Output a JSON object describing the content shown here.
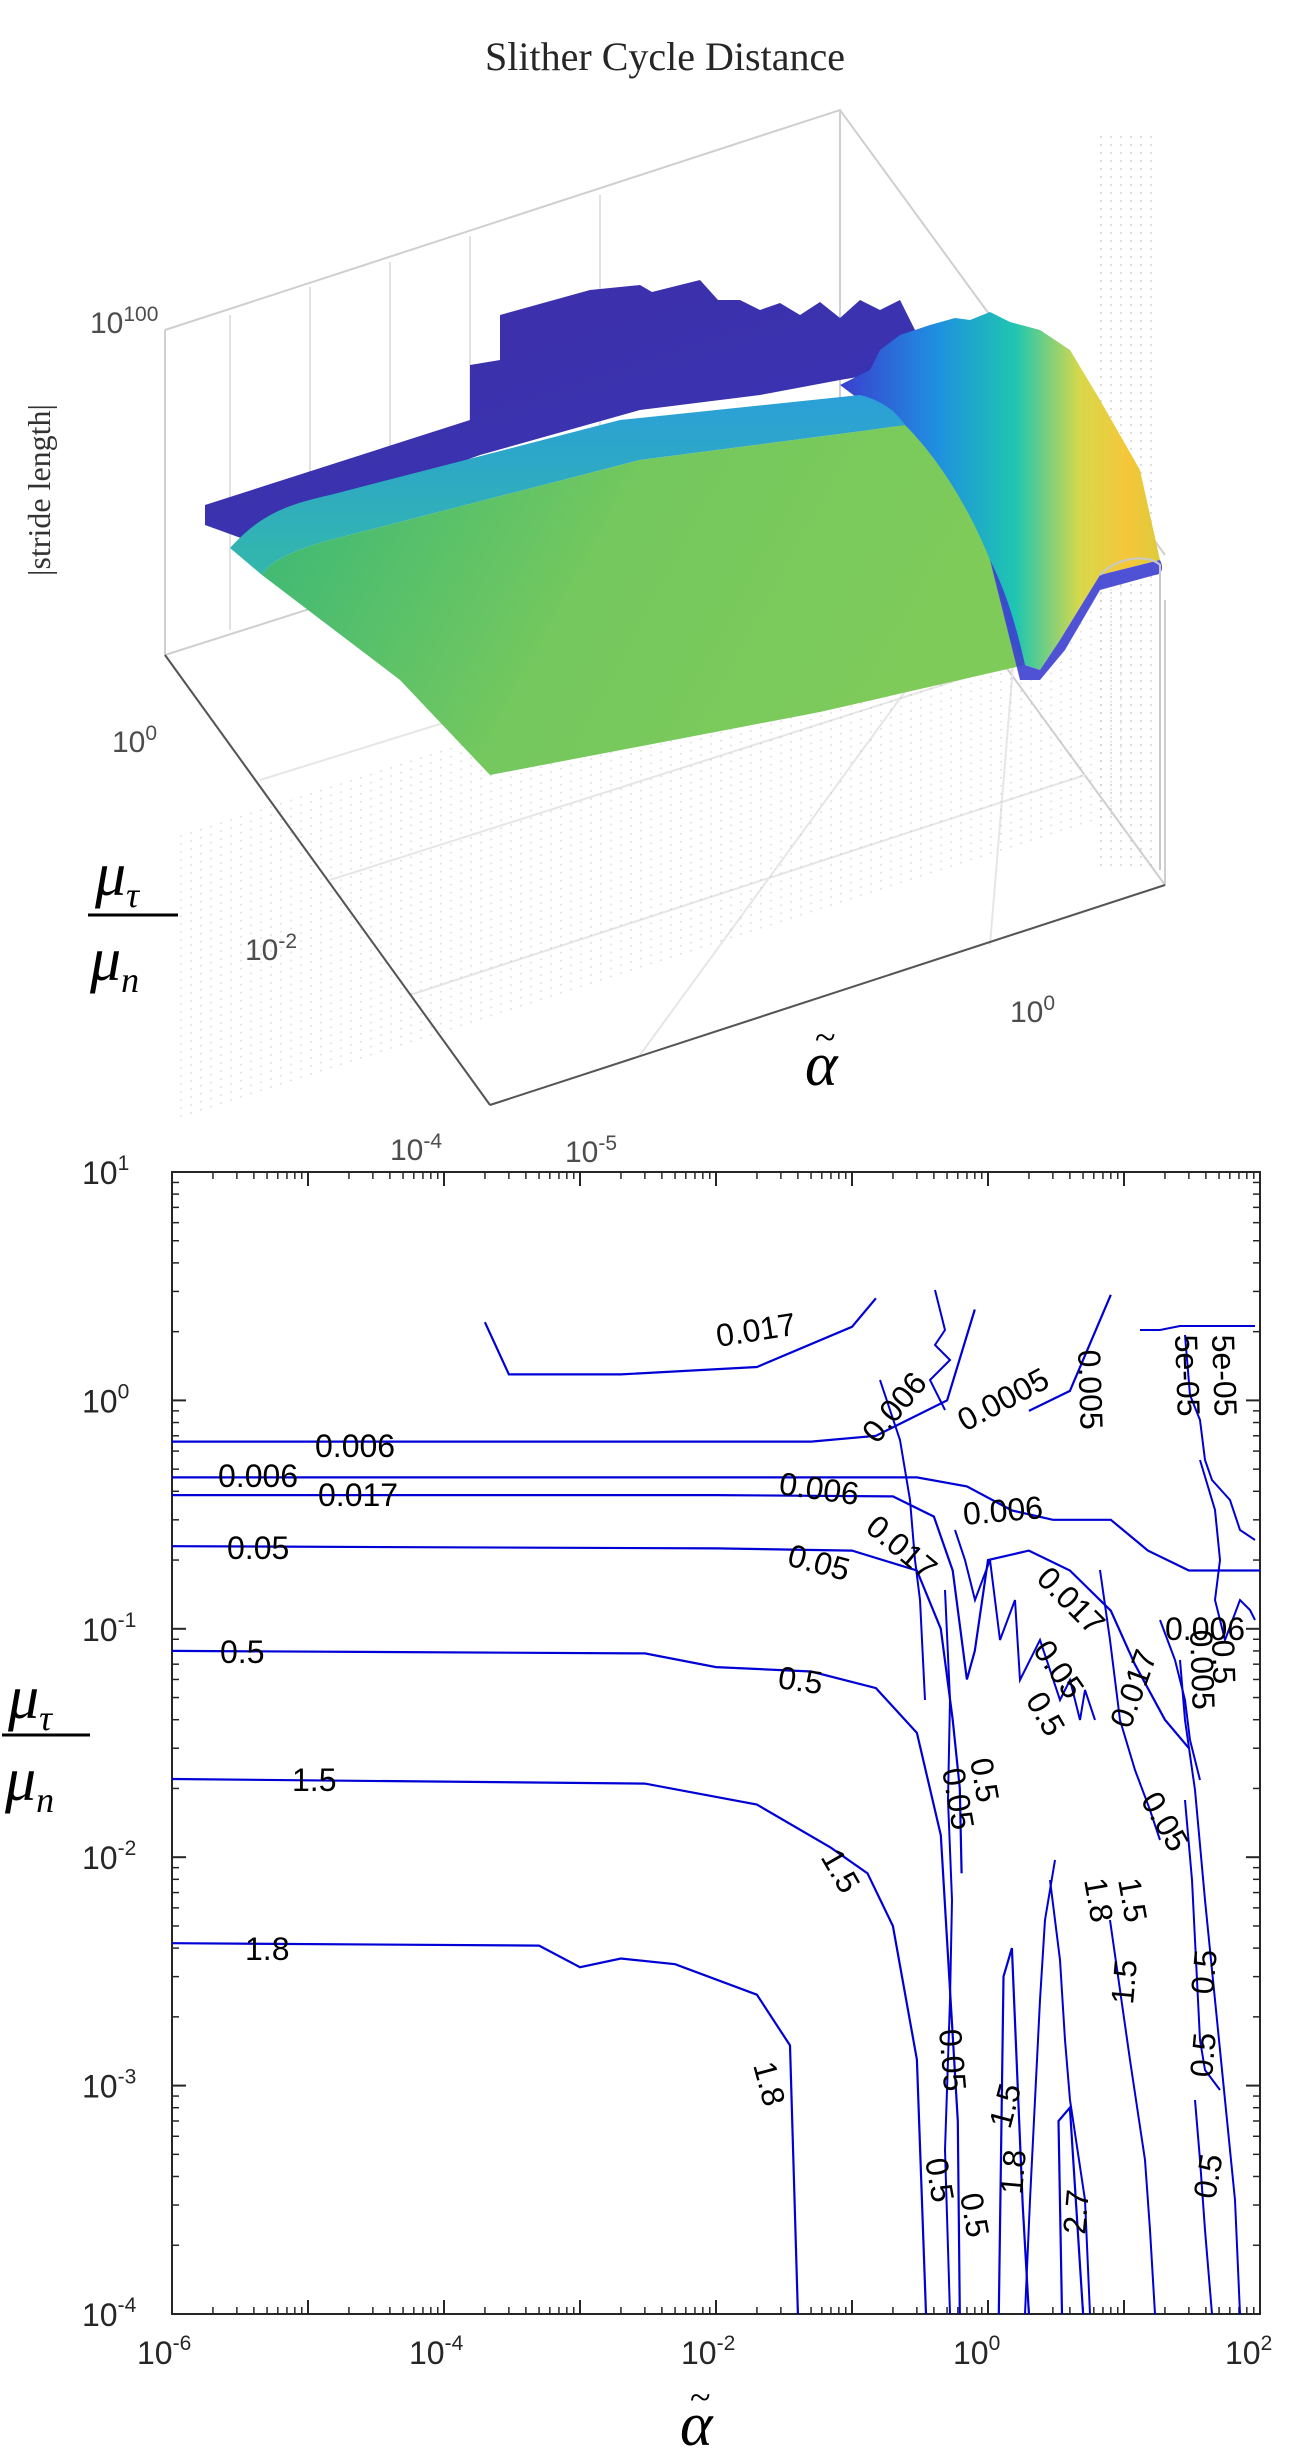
{
  "chart_data": [
    {
      "type": "surface",
      "title": "Slither Cycle Distance",
      "xlabel": "α̃",
      "ylabel": "μτ / μn",
      "zlabel": "|stride length|",
      "x_scale": "log",
      "y_scale": "log",
      "z_scale": "log",
      "x_ticks": [
        "10-5",
        "100"
      ],
      "y_ticks": [
        "100",
        "10-2",
        "10-4"
      ],
      "z_ticks": [
        "100"
      ],
      "colormap": "parula",
      "grid": true
    },
    {
      "type": "contour",
      "xlabel": "α̃",
      "ylabel": "μτ / μn",
      "x_scale": "log",
      "y_scale": "log",
      "xlim": [
        1e-06,
        100
      ],
      "ylim": [
        0.0001,
        10
      ],
      "x_ticks": [
        "10-6",
        "10-4",
        "10-2",
        "100",
        "102"
      ],
      "y_ticks": [
        "10-4",
        "10-3",
        "10-2",
        "10-1",
        "100",
        "101"
      ],
      "line_color": "#0000d6",
      "levels": [
        0.0005,
        0.006,
        0.017,
        0.05,
        0.5,
        1.5,
        1.8,
        2.7
      ],
      "contours": [
        {
          "level": "0.006",
          "points": [
            [
              1e-06,
              0.66
            ],
            [
              0.001,
              0.66
            ],
            [
              0.05,
              0.66
            ],
            [
              0.15,
              0.7
            ],
            [
              0.5,
              1.0
            ],
            [
              0.8,
              2.5
            ]
          ]
        },
        {
          "level": "0.006",
          "points": [
            [
              1e-06,
              0.46
            ],
            [
              0.01,
              0.46
            ],
            [
              0.3,
              0.46
            ],
            [
              0.7,
              0.42
            ],
            [
              1.5,
              0.33
            ],
            [
              3,
              0.3
            ],
            [
              8,
              0.3
            ],
            [
              15,
              0.22
            ],
            [
              30,
              0.18
            ],
            [
              100,
              0.18
            ]
          ]
        },
        {
          "level": "0.017",
          "points": [
            [
              1e-06,
              0.385
            ],
            [
              0.01,
              0.385
            ],
            [
              0.2,
              0.38
            ],
            [
              0.4,
              0.31
            ],
            [
              0.55,
              0.18
            ],
            [
              0.7,
              0.06
            ],
            [
              0.8,
              0.08
            ],
            [
              1,
              0.2
            ],
            [
              2,
              0.22
            ],
            [
              4,
              0.18
            ],
            [
              8,
              0.12
            ],
            [
              12,
              0.07
            ],
            [
              20,
              0.04
            ],
            [
              30,
              0.03
            ]
          ]
        },
        {
          "level": "0.05",
          "points": [
            [
              1e-06,
              0.23
            ],
            [
              0.01,
              0.225
            ],
            [
              0.1,
              0.22
            ],
            [
              0.3,
              0.18
            ],
            [
              0.45,
              0.1
            ],
            [
              0.55,
              0.04
            ],
            [
              0.62,
              0.02
            ],
            [
              0.64,
              0.0085
            ]
          ]
        },
        {
          "level": "0.5",
          "points": [
            [
              1e-06,
              0.08
            ],
            [
              0.003,
              0.078
            ],
            [
              0.01,
              0.068
            ],
            [
              0.05,
              0.065
            ],
            [
              0.15,
              0.055
            ],
            [
              0.3,
              0.035
            ],
            [
              0.45,
              0.0125
            ],
            [
              0.6,
              0.0007
            ],
            [
              0.62,
              0.0001
            ]
          ]
        },
        {
          "level": "1.5",
          "points": [
            [
              1e-06,
              0.022
            ],
            [
              0.003,
              0.021
            ],
            [
              0.02,
              0.017
            ],
            [
              0.07,
              0.011
            ],
            [
              0.13,
              0.0085
            ],
            [
              0.2,
              0.005
            ],
            [
              0.3,
              0.0013
            ],
            [
              0.35,
              0.0001
            ]
          ]
        },
        {
          "level": "1.8",
          "points": [
            [
              1e-06,
              0.0042
            ],
            [
              0.0005,
              0.0041
            ],
            [
              0.001,
              0.0033
            ],
            [
              0.002,
              0.0036
            ],
            [
              0.005,
              0.0034
            ],
            [
              0.02,
              0.0025
            ],
            [
              0.035,
              0.0015
            ],
            [
              0.04,
              0.0001
            ]
          ]
        },
        {
          "level": "0.017",
          "points": [
            [
              0.0002,
              2.2
            ],
            [
              0.0003,
              1.3
            ],
            [
              0.002,
              1.3
            ],
            [
              0.02,
              1.4
            ],
            [
              0.1,
              2.1
            ],
            [
              0.15,
              2.8
            ]
          ]
        },
        {
          "level": "0.0005",
          "points": [
            [
              2,
              0.9
            ],
            [
              4,
              1.1
            ],
            [
              8,
              2.9
            ]
          ]
        },
        {
          "level": "2.7",
          "points": [
            [
              3.5,
              0.0001
            ],
            [
              3.3,
              0.0007
            ],
            [
              4,
              0.0008
            ],
            [
              5,
              0.0001
            ]
          ]
        },
        {
          "level": "1.8",
          "points": [
            [
              1.2,
              0.0001
            ],
            [
              1.3,
              0.003
            ],
            [
              1.5,
              0.004
            ],
            [
              1.8,
              0.0003
            ],
            [
              2,
              0.0001
            ]
          ]
        }
      ],
      "label_texts": {
        "l_0017_top": "0.017",
        "l_0006_a": "0.006",
        "l_0006_b": "0.006",
        "l_0006_c": "0.006",
        "l_0006_d": "0.006",
        "l_0006_e": "0.006",
        "l_0017_a": "0.017",
        "l_0017_b": "0.017",
        "l_0017_c": "0.017",
        "l_005_a": "0.05",
        "l_005_b": "0.05",
        "l_005_c": "0.05",
        "l_005_d": "0.05",
        "l_005_e": "0.05",
        "l_05_a": "0.5",
        "l_05_b": "0.5",
        "l_05_c": "0.5",
        "l_05_d": "0.5",
        "l_05_e": "0.5",
        "l_05_f": "0.5",
        "l_05_g": "0.5",
        "l_05_h": "0.5",
        "l_15_a": "1.5",
        "l_15_b": "1.5",
        "l_15_c": "1.5",
        "l_15_d": "1.5",
        "l_18_a": "1.8",
        "l_18_b": "1.8",
        "l_18_c": "1.8",
        "l_18_d": "1.8",
        "l_27": "2.7",
        "l_00005": "0.0005",
        "l_0005_r": "0.005",
        "l_5e05_a": "5e-05",
        "l_5e05_b": "5e-05",
        "l_0006_r": "0.006",
        "l_0005_rr": "0.005",
        "l_05_rr": "0.5"
      }
    }
  ]
}
